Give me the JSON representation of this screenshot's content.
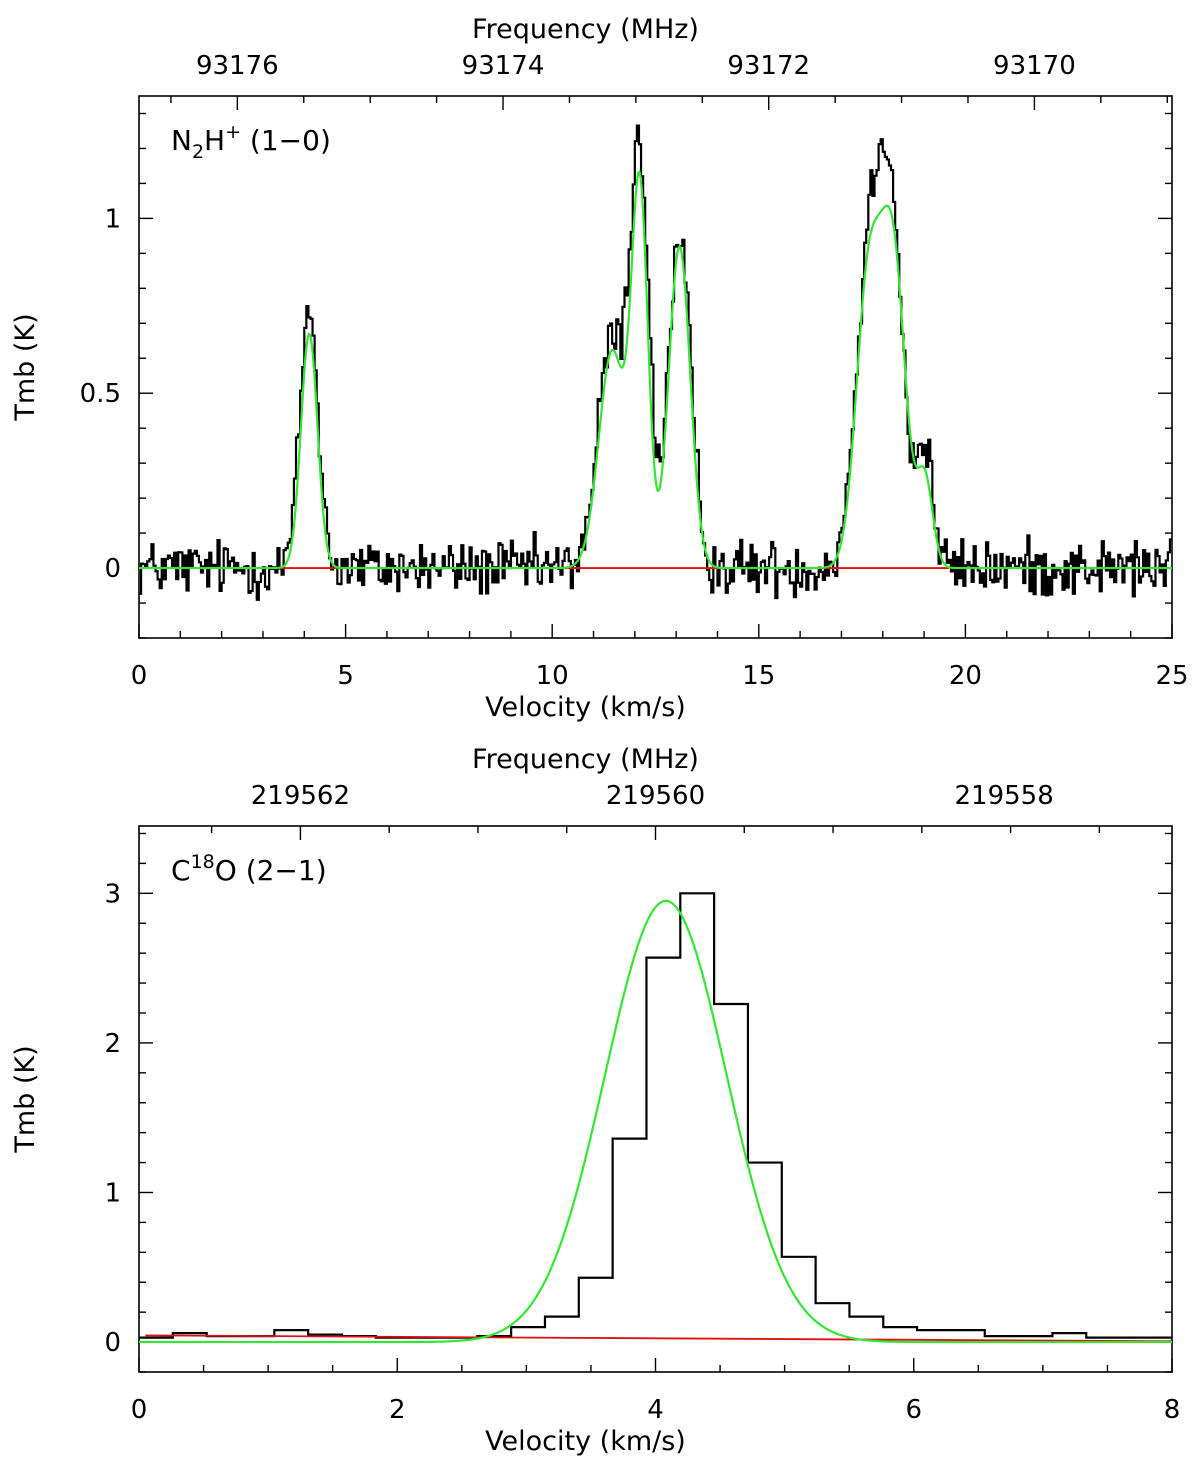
{
  "colors": {
    "spectrum": "#000000",
    "fit": "#33e633",
    "baseline": "#e01010"
  },
  "chart_data": [
    {
      "type": "line",
      "name": "N2H+ panel",
      "label": {
        "base": "N",
        "sub": "2",
        "mid": "H",
        "sup": "+",
        "tail": " (1−0)"
      },
      "xlabel": "Velocity (km/s)",
      "ylabel": "Tmb (K)",
      "top_xlabel": "Frequency (MHz)",
      "xlim": [
        0,
        25
      ],
      "ylim": [
        -0.2,
        1.35
      ],
      "x_ticks": [
        0,
        5,
        10,
        15,
        20,
        25
      ],
      "x_tick_labels": [
        "0",
        "5",
        "10",
        "15",
        "20",
        "25"
      ],
      "x_minor_step": 1,
      "y_ticks": [
        0,
        0.5,
        1
      ],
      "y_tick_labels": [
        "0",
        "0.5",
        "1"
      ],
      "y_minor_step": 0.1,
      "top_ticks_velocity": [
        2.38,
        8.81,
        15.24,
        21.67
      ],
      "top_tick_labels": [
        "93176",
        "93174",
        "93172",
        "93170"
      ],
      "spectrum": {
        "x_start": 0,
        "step": 0.05,
        "noise_sigma": 0.04,
        "line_peaks": [
          {
            "center": 4.12,
            "amp": 0.74,
            "sigma": 0.22
          },
          {
            "center": 11.45,
            "amp": 0.65,
            "sigma": 0.34
          },
          {
            "center": 12.12,
            "amp": 1.15,
            "sigma": 0.22
          },
          {
            "center": 13.08,
            "amp": 0.92,
            "sigma": 0.28
          },
          {
            "center": 17.65,
            "amp": 0.82,
            "sigma": 0.32
          },
          {
            "center": 18.2,
            "amp": 0.98,
            "sigma": 0.3
          },
          {
            "center": 19.02,
            "amp": 0.33,
            "sigma": 0.2
          }
        ]
      },
      "fit": {
        "components": [
          {
            "center": 4.12,
            "amp": 0.67,
            "sigma": 0.2
          },
          {
            "center": 11.45,
            "amp": 0.62,
            "sigma": 0.32
          },
          {
            "center": 12.12,
            "amp": 1.06,
            "sigma": 0.2
          },
          {
            "center": 13.08,
            "amp": 0.92,
            "sigma": 0.26
          },
          {
            "center": 17.65,
            "amp": 0.8,
            "sigma": 0.3
          },
          {
            "center": 18.25,
            "amp": 0.88,
            "sigma": 0.3
          },
          {
            "center": 19.02,
            "amp": 0.25,
            "sigma": 0.19
          }
        ]
      },
      "baseline": {
        "x": [
          3.4,
          19.6
        ],
        "y": [
          0,
          0
        ]
      }
    },
    {
      "type": "line",
      "name": "C18O panel",
      "label": {
        "base": "C",
        "sup": "18",
        "mid": "O",
        "tail": " (2−1)"
      },
      "xlabel": "Velocity (km/s)",
      "ylabel": "Tmb (K)",
      "top_xlabel": "Frequency (MHz)",
      "xlim": [
        0,
        8
      ],
      "ylim": [
        -0.2,
        3.45
      ],
      "x_ticks": [
        0,
        2,
        4,
        6,
        8
      ],
      "x_tick_labels": [
        "0",
        "2",
        "4",
        "6",
        "8"
      ],
      "x_minor_step": 0.5,
      "y_ticks": [
        0,
        1,
        2,
        3
      ],
      "y_tick_labels": [
        "0",
        "1",
        "2",
        "3"
      ],
      "y_minor_step": 0.2,
      "top_ticks_velocity": [
        1.25,
        4.0,
        6.7
      ],
      "top_tick_labels": [
        "219562",
        "219560",
        "219558"
      ],
      "spectrum": {
        "x_start": 0.0,
        "step": 0.262,
        "values": [
          0.03,
          0.06,
          0.04,
          0.04,
          0.08,
          0.05,
          0.04,
          0.03,
          0.03,
          0.03,
          0.04,
          0.1,
          0.17,
          0.43,
          1.36,
          2.57,
          3.0,
          2.26,
          1.2,
          0.57,
          0.26,
          0.17,
          0.1,
          0.08,
          0.08,
          0.04,
          0.04,
          0.06,
          0.03,
          0.03,
          0.03
        ]
      },
      "fit": {
        "components": [
          {
            "center": 4.08,
            "amp": 2.95,
            "sigma": 0.47
          }
        ]
      },
      "baseline": {
        "x": [
          0.05,
          8.0
        ],
        "y": [
          0.045,
          0.005
        ]
      }
    }
  ]
}
